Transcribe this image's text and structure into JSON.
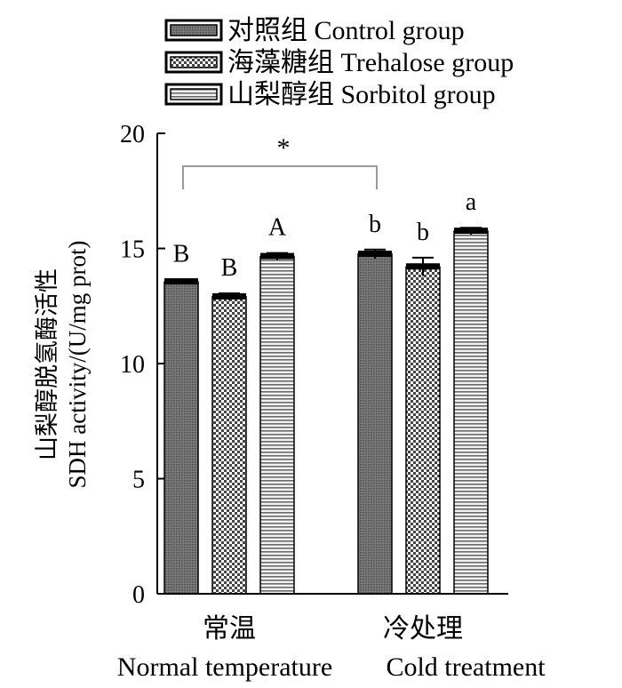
{
  "chart_data": {
    "type": "bar",
    "ylabel_cn": "山梨醇脱氢酶活性",
    "ylabel_en": "SDH activity/(U/mg prot)",
    "ylim": [
      0,
      20
    ],
    "yticks": [
      "0",
      "5",
      "10",
      "15",
      "20"
    ],
    "legend_position": "top",
    "categories": [
      {
        "cn": "常温",
        "en": "Normal temperature"
      },
      {
        "cn": "冷处理",
        "en": "Cold treatment"
      }
    ],
    "series": [
      {
        "name_cn": "对照组",
        "name_en": "Control group",
        "pattern": "fine-dots",
        "values": [
          13.55,
          14.75
        ],
        "errors": [
          0.1,
          0.2
        ],
        "letters": [
          "B",
          "b"
        ]
      },
      {
        "name_cn": "海藻糖组",
        "name_en": "Trehalose group",
        "pattern": "checker",
        "values": [
          12.9,
          14.2
        ],
        "errors": [
          0.15,
          0.4
        ],
        "letters": [
          "B",
          "b"
        ]
      },
      {
        "name_cn": "山梨醇组",
        "name_en": "Sorbitol group",
        "pattern": "horizontal-lines",
        "values": [
          14.65,
          15.75
        ],
        "errors": [
          0.15,
          0.15
        ],
        "letters": [
          "A",
          "a"
        ]
      }
    ],
    "significance": {
      "label": "*",
      "between": [
        "Control group (Normal temperature)",
        "Control group (Cold treatment)"
      ]
    }
  }
}
